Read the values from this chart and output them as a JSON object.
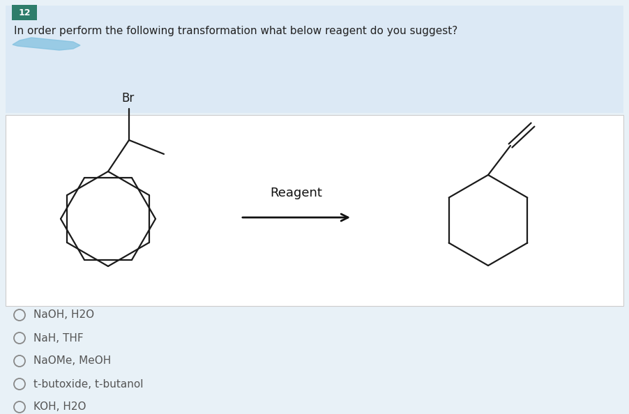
{
  "question_number": "12",
  "question_text": "In order perform the following transformation what below reagent do you suggest?",
  "reagent_label": "Reagent",
  "question_bg": "#dce9f5",
  "white_bg": "#ffffff",
  "overall_bg": "#e8f1f7",
  "options": [
    "NaOH, H2O",
    "NaH, THF",
    "NaOMe, MeOH",
    "t-butoxide, t-butanol",
    "KOH, H2O"
  ],
  "num_label_bg": "#2e7d6b",
  "num_label_color": "#ffffff",
  "text_color": "#222222",
  "option_text_color": "#555555",
  "blob_color": "#7dbfdf"
}
